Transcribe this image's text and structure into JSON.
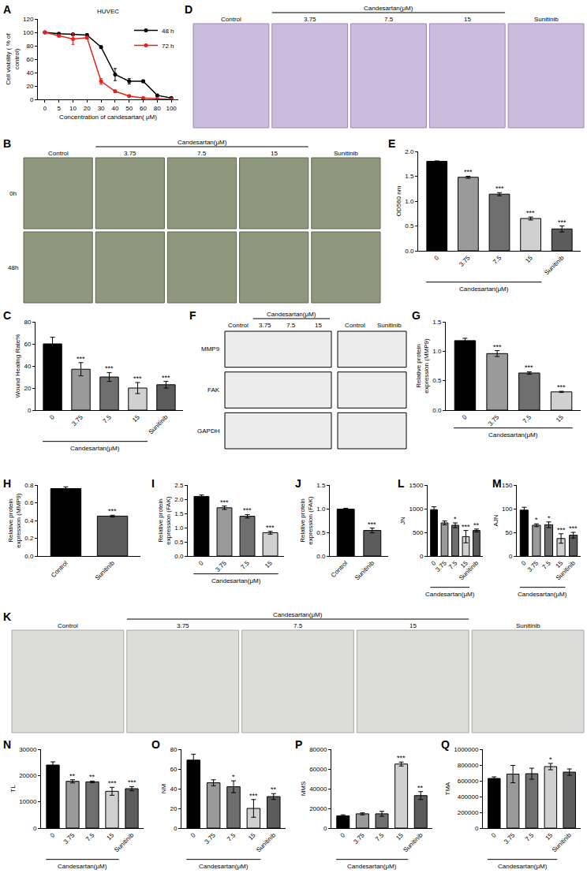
{
  "chart_data": [
    {
      "panel": "A",
      "type": "line",
      "title": "HUVEC",
      "x_label": "Concentration of candesartan( μM)",
      "y_label": "Cell viability ( % of control)",
      "categories": [
        "0",
        "5",
        "10",
        "20",
        "30",
        "40",
        "50",
        "60",
        "80",
        "100"
      ],
      "series": [
        {
          "name": "48 h",
          "color": "#000000",
          "marker": "circle",
          "values": [
            100,
            98,
            97,
            96,
            78,
            37,
            27,
            27,
            6,
            2
          ],
          "errors": [
            1,
            1,
            1,
            2,
            2,
            9,
            4,
            2,
            1,
            1
          ]
        },
        {
          "name": "72 h",
          "color": "#e8211c",
          "marker": "circle",
          "values": [
            100,
            95,
            90,
            92,
            27,
            12,
            5,
            2,
            1,
            0
          ],
          "errors": [
            1,
            2,
            8,
            2,
            4,
            2,
            1,
            0.5,
            0.5,
            0.3
          ]
        }
      ],
      "ylim": [
        0,
        120
      ],
      "yticks": [
        0,
        20,
        40,
        60,
        80,
        100,
        120
      ],
      "legend": "upper right"
    },
    {
      "panel": "E",
      "type": "bar",
      "y_label": "OD560 nm",
      "categories": [
        "0",
        "3.75",
        "7.5",
        "15",
        "Sunitinib"
      ],
      "group": {
        "label": "Candesartan(μM)",
        "members": [
          "0",
          "3.75",
          "7.5",
          "15"
        ]
      },
      "values": [
        1.8,
        1.48,
        1.14,
        0.65,
        0.44
      ],
      "errors": [
        0.01,
        0.02,
        0.03,
        0.03,
        0.06
      ],
      "significance": [
        null,
        "***",
        "***",
        "***",
        "***"
      ],
      "colors": [
        "#000000",
        "#9a9a9a",
        "#6f6f6f",
        "#d0d0d0",
        "#5c5c5c"
      ],
      "ylim": [
        0,
        2.0
      ],
      "yticks": [
        {
          "value": 0,
          "label": "0.0"
        },
        {
          "value": 0.5,
          "label": "0.5"
        },
        {
          "value": 1,
          "label": "1.0"
        },
        {
          "value": 1.5,
          "label": "1.5"
        },
        {
          "value": 2,
          "label": "2.0"
        }
      ]
    },
    {
      "panel": "C",
      "type": "bar",
      "y_label": "Wound Healing Rate%",
      "categories": [
        "0",
        "3.75",
        "7.5",
        "15",
        "Sunitinib"
      ],
      "group": {
        "label": "Candesartan(μM)",
        "members": [
          "0",
          "3.75",
          "7.5",
          "15"
        ]
      },
      "values": [
        60,
        37,
        30,
        20,
        23
      ],
      "errors": [
        6,
        6,
        4,
        5,
        3
      ],
      "significance": [
        null,
        "***",
        "***",
        "***",
        "***"
      ],
      "colors": [
        "#000000",
        "#9a9a9a",
        "#6f6f6f",
        "#d0d0d0",
        "#5c5c5c"
      ],
      "ylim": [
        0,
        80
      ],
      "yticks": [
        0,
        20,
        40,
        60,
        80
      ]
    },
    {
      "panel": "G",
      "type": "bar",
      "y_label": "Relative protein expression (MMP9)",
      "categories": [
        "0",
        "3.75",
        "7.5",
        "15"
      ],
      "group": {
        "label": "Candesartan(μM)",
        "members": [
          "0",
          "3.75",
          "7.5",
          "15"
        ]
      },
      "values": [
        1.18,
        0.96,
        0.63,
        0.31
      ],
      "errors": [
        0.04,
        0.05,
        0.02,
        0.01
      ],
      "significance": [
        null,
        "***",
        "***",
        "***"
      ],
      "colors": [
        "#000000",
        "#9a9a9a",
        "#6f6f6f",
        "#d0d0d0"
      ],
      "ylim": [
        0,
        1.5
      ],
      "yticks": [
        {
          "value": 0,
          "label": "0.0"
        },
        {
          "value": 0.5,
          "label": "0.5"
        },
        {
          "value": 1,
          "label": "1.0"
        },
        {
          "value": 1.5,
          "label": "1.5"
        }
      ]
    },
    {
      "panel": "H",
      "type": "bar",
      "y_label": "Relative protein expression (MMP9)",
      "categories": [
        "Control",
        "Sunitinib"
      ],
      "values": [
        0.76,
        0.45
      ],
      "errors": [
        0.02,
        0.01
      ],
      "significance": [
        null,
        "***"
      ],
      "colors": [
        "#000000",
        "#5c5c5c"
      ],
      "ylim": [
        0,
        0.8
      ],
      "yticks": [
        {
          "value": 0,
          "label": "0.0"
        },
        {
          "value": 0.2,
          "label": "0.2"
        },
        {
          "value": 0.4,
          "label": "0.4"
        },
        {
          "value": 0.6,
          "label": "0.6"
        },
        {
          "value": 0.8,
          "label": "0.8"
        }
      ]
    },
    {
      "panel": "I",
      "type": "bar",
      "y_label": "Relative protein expression (FAK)",
      "categories": [
        "0",
        "3.75",
        "7.5",
        "15"
      ],
      "group": {
        "label": "Candesartan(μM)",
        "members": [
          "0",
          "3.75",
          "7.5",
          "15"
        ]
      },
      "values": [
        2.1,
        1.7,
        1.4,
        0.82
      ],
      "errors": [
        0.05,
        0.06,
        0.06,
        0.05
      ],
      "significance": [
        null,
        "***",
        "***",
        "***"
      ],
      "colors": [
        "#000000",
        "#9a9a9a",
        "#6f6f6f",
        "#d0d0d0"
      ],
      "ylim": [
        0,
        2.5
      ],
      "yticks": [
        {
          "value": 0,
          "label": "0.0"
        },
        {
          "value": 0.5,
          "label": "0.5"
        },
        {
          "value": 1,
          "label": "1.0"
        },
        {
          "value": 1.5,
          "label": "1.5"
        },
        {
          "value": 2,
          "label": "2.0"
        },
        {
          "value": 2.5,
          "label": "2.5"
        }
      ]
    },
    {
      "panel": "J",
      "type": "bar",
      "y_label": "Relative protein expression (FAK)",
      "categories": [
        "Control",
        "Sunitinib"
      ],
      "values": [
        0.99,
        0.54
      ],
      "errors": [
        0.02,
        0.05
      ],
      "significance": [
        null,
        "***"
      ],
      "colors": [
        "#000000",
        "#5c5c5c"
      ],
      "ylim": [
        0,
        1.5
      ],
      "yticks": [
        {
          "value": 0,
          "label": "0.0"
        },
        {
          "value": 0.5,
          "label": "0.5"
        },
        {
          "value": 1,
          "label": "1.0"
        },
        {
          "value": 1.5,
          "label": "1.5"
        }
      ]
    },
    {
      "panel": "L",
      "type": "bar",
      "y_label": "JN",
      "categories": [
        "0",
        "3.75",
        "7.5",
        "15",
        "Sunitinib"
      ],
      "group": {
        "label": "Candesartan(μM)",
        "members": [
          "0",
          "3.75",
          "7.5",
          "15"
        ]
      },
      "values": [
        980,
        700,
        650,
        410,
        540
      ],
      "errors": [
        60,
        40,
        50,
        130,
        30
      ],
      "significance": [
        null,
        null,
        "*",
        "***",
        "**"
      ],
      "colors": [
        "#000000",
        "#9a9a9a",
        "#6f6f6f",
        "#d0d0d0",
        "#5c5c5c"
      ],
      "ylim": [
        0,
        1500
      ],
      "yticks": [
        0,
        500,
        1000,
        1500
      ]
    },
    {
      "panel": "M",
      "type": "bar",
      "y_label": "AJN",
      "categories": [
        "0",
        "3.75",
        "7.5",
        "15",
        "Sunitinib"
      ],
      "group": {
        "label": "Candesartan(μM)",
        "members": [
          "0",
          "3.75",
          "7.5",
          "15"
        ]
      },
      "values": [
        97,
        65,
        66,
        37,
        44
      ],
      "errors": [
        6,
        3,
        6,
        10,
        6
      ],
      "significance": [
        null,
        "*",
        "*",
        "***",
        "***"
      ],
      "colors": [
        "#000000",
        "#9a9a9a",
        "#6f6f6f",
        "#d0d0d0",
        "#5c5c5c"
      ],
      "ylim": [
        0,
        150
      ],
      "yticks": [
        0,
        50,
        100,
        150
      ]
    },
    {
      "panel": "N",
      "type": "bar",
      "y_label": "TL",
      "categories": [
        "0",
        "3.75",
        "7.5",
        "15",
        "Sunitinib"
      ],
      "group": {
        "label": "Candesartan(μM)",
        "members": [
          "0",
          "3.75",
          "7.5",
          "15"
        ]
      },
      "values": [
        24000,
        17800,
        17600,
        14000,
        15000
      ],
      "errors": [
        1200,
        600,
        300,
        1500,
        800
      ],
      "significance": [
        null,
        "**",
        "**",
        "***",
        "***"
      ],
      "colors": [
        "#000000",
        "#9a9a9a",
        "#6f6f6f",
        "#d0d0d0",
        "#5c5c5c"
      ],
      "ylim": [
        0,
        30000
      ],
      "yticks": [
        0,
        10000,
        20000,
        30000
      ]
    },
    {
      "panel": "O",
      "type": "bar",
      "y_label": "NM",
      "categories": [
        "0",
        "3.75",
        "7.5",
        "15",
        "Sunitinib"
      ],
      "group": {
        "label": "Candesartan(μM)",
        "members": [
          "0",
          "3.75",
          "7.5",
          "15"
        ]
      },
      "values": [
        69,
        46,
        42,
        20,
        32
      ],
      "errors": [
        6,
        3,
        6,
        9,
        3
      ],
      "significance": [
        null,
        null,
        "*",
        "***",
        "**"
      ],
      "colors": [
        "#000000",
        "#9a9a9a",
        "#6f6f6f",
        "#d0d0d0",
        "#5c5c5c"
      ],
      "ylim": [
        0,
        80
      ],
      "yticks": [
        0,
        20,
        40,
        60,
        80
      ]
    },
    {
      "panel": "P",
      "type": "bar",
      "y_label": "MMS",
      "categories": [
        "0",
        "3.75",
        "7.5",
        "15",
        "Sunitinib"
      ],
      "group": {
        "label": "Candesartan(μM)",
        "members": [
          "0",
          "3.75",
          "7.5",
          "15"
        ]
      },
      "values": [
        12500,
        14500,
        14500,
        65000,
        33000
      ],
      "errors": [
        1000,
        1000,
        2500,
        2000,
        4000
      ],
      "significance": [
        null,
        null,
        null,
        "***",
        "**"
      ],
      "colors": [
        "#000000",
        "#9a9a9a",
        "#6f6f6f",
        "#d0d0d0",
        "#5c5c5c"
      ],
      "ylim": [
        0,
        80000
      ],
      "yticks": [
        0,
        20000,
        40000,
        60000,
        80000
      ]
    },
    {
      "panel": "Q",
      "type": "bar",
      "y_label": "TMA",
      "categories": [
        "0",
        "3.75",
        "7.5",
        "15",
        "Sunitinib"
      ],
      "group": {
        "label": "Candesartan(μM)",
        "members": [
          "0",
          "3.75",
          "7.5",
          "15"
        ]
      },
      "values": [
        630000,
        685000,
        690000,
        780000,
        710000
      ],
      "errors": [
        20000,
        110000,
        70000,
        40000,
        40000
      ],
      "significance": [
        null,
        null,
        null,
        "*",
        null
      ],
      "colors": [
        "#000000",
        "#9a9a9a",
        "#6f6f6f",
        "#d0d0d0",
        "#5c5c5c"
      ],
      "ylim": [
        0,
        1000000
      ],
      "yticks": [
        0,
        200000,
        400000,
        600000,
        800000,
        1000000
      ]
    }
  ],
  "image_panels": [
    {
      "panel": "D",
      "type": "micrographs",
      "columns": [
        "Control",
        "3.75",
        "7.5",
        "15",
        "Sunitinib"
      ],
      "group": {
        "label": "Candesartan(μM)",
        "members": [
          "3.75",
          "7.5",
          "15"
        ]
      }
    },
    {
      "panel": "B",
      "type": "micrographs",
      "columns": [
        "Control",
        "3.75",
        "7.5",
        "15",
        "Sunitinib"
      ],
      "rows": [
        "0h",
        "48h"
      ],
      "group": {
        "label": "Candesartan(μM)",
        "members": [
          "3.75",
          "7.5",
          "15"
        ]
      }
    },
    {
      "panel": "F",
      "type": "western_blot",
      "blocks": [
        [
          "Control",
          "3.75",
          "7.5",
          "15"
        ],
        [
          "Control",
          "Sunitinib"
        ]
      ],
      "rows": [
        "MMP9",
        "FAK",
        "GAPDH"
      ],
      "group": {
        "label": "Candesartan(μM)",
        "members": [
          "3.75",
          "7.5",
          "15"
        ]
      }
    },
    {
      "panel": "K",
      "type": "micrographs",
      "columns": [
        "Control",
        "3.75",
        "7.5",
        "15",
        "Sunitinib"
      ],
      "group": {
        "label": "Candesartan(μM)",
        "members": [
          "3.75",
          "7.5",
          "15"
        ]
      }
    }
  ]
}
